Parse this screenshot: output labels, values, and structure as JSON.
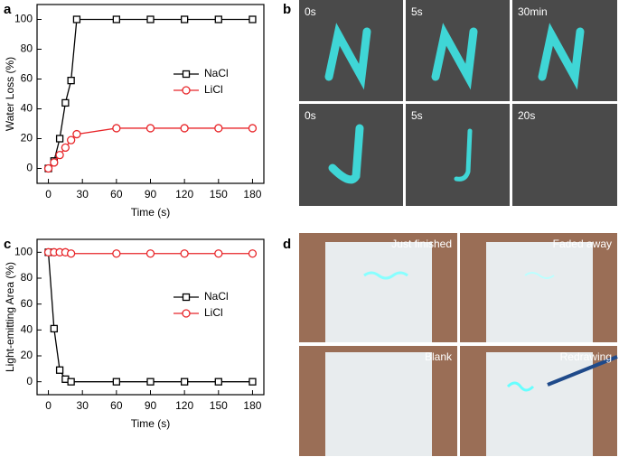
{
  "chart_data": [
    {
      "type": "line",
      "x_label": "Time (s)",
      "y_label": "Water Loss (%)",
      "x": [
        0,
        5,
        10,
        15,
        20,
        25,
        60,
        90,
        120,
        150,
        180
      ],
      "series": [
        {
          "name": "NaCl",
          "color": "#000000",
          "marker": "square",
          "values": [
            0,
            5,
            20,
            44,
            59,
            100,
            100,
            100,
            100,
            100,
            100
          ]
        },
        {
          "name": "LiCl",
          "color": "#e8262a",
          "marker": "circle",
          "values": [
            0,
            4,
            9,
            14,
            19,
            23,
            27,
            27,
            27,
            27,
            27
          ]
        }
      ],
      "xlim": [
        -10,
        190
      ],
      "xticks": [
        0,
        30,
        60,
        90,
        120,
        150,
        180
      ],
      "ylim": [
        -10,
        110
      ],
      "yticks": [
        0,
        20,
        40,
        60,
        80,
        100
      ],
      "legend": "right"
    },
    {
      "type": "line",
      "x_label": "Time (s)",
      "y_label": "Light-emitting Area (%)",
      "x": [
        0,
        5,
        10,
        15,
        20,
        60,
        90,
        120,
        150,
        180
      ],
      "series": [
        {
          "name": "NaCl",
          "color": "#000000",
          "marker": "square",
          "values": [
            100,
            41,
            9,
            2,
            0,
            0,
            0,
            0,
            0,
            0
          ]
        },
        {
          "name": "LiCl",
          "color": "#e8262a",
          "marker": "circle",
          "values": [
            100,
            100,
            100,
            100,
            99,
            99,
            99,
            99,
            99,
            99
          ]
        }
      ],
      "xlim": [
        -10,
        190
      ],
      "xticks": [
        0,
        30,
        60,
        90,
        120,
        150,
        180
      ],
      "ylim": [
        -10,
        110
      ],
      "yticks": [
        0,
        20,
        40,
        60,
        80,
        100
      ],
      "legend": "right"
    }
  ],
  "panels": {
    "labels": [
      "a",
      "b",
      "c",
      "d"
    ],
    "b_captions": [
      "0s",
      "5s",
      "30min",
      "0s",
      "5s",
      "20s"
    ],
    "d_captions": [
      "Just finished",
      "Faded away",
      "Blank",
      "Redrawing"
    ]
  }
}
